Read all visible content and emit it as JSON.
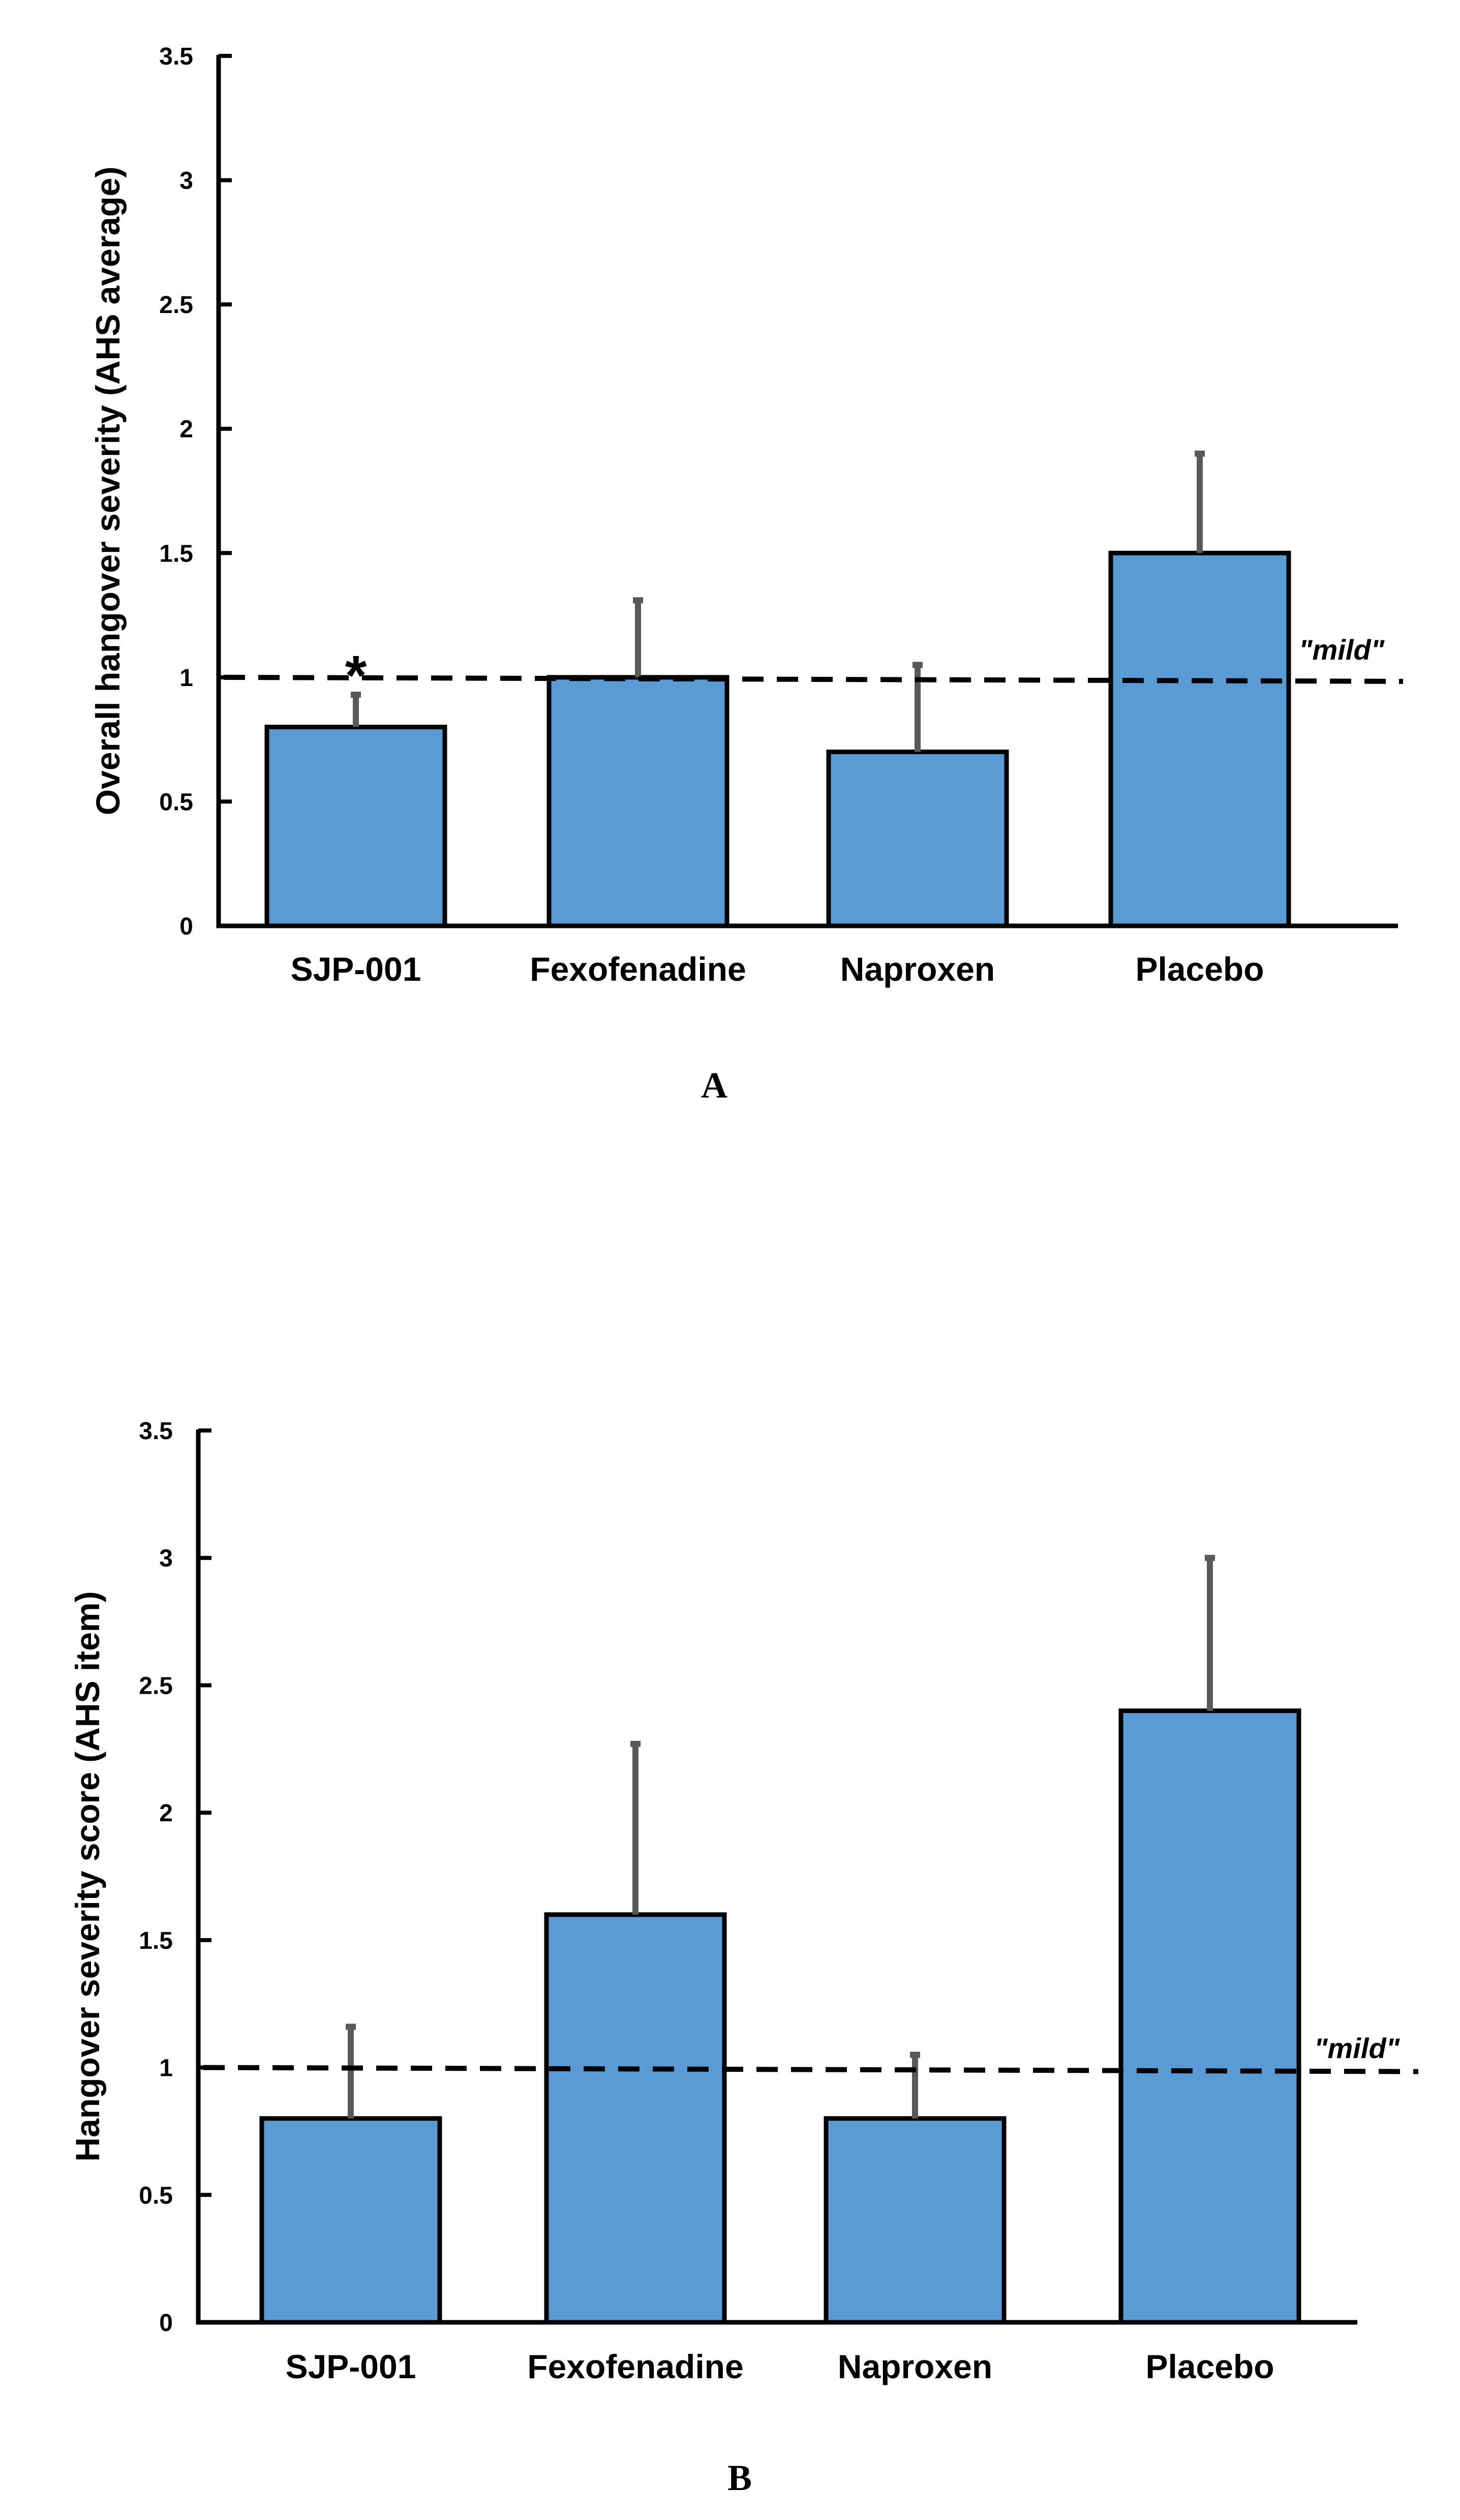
{
  "chart_data": [
    {
      "panel": "A",
      "type": "bar",
      "title": "",
      "xlabel": "",
      "ylabel": "Overall hangover severity (AHS average)",
      "ylim": [
        0,
        3.5
      ],
      "yticks": [
        "0",
        "0.5",
        "1",
        "1.5",
        "2",
        "2.5",
        "3",
        "3.5"
      ],
      "grid": false,
      "categories": [
        "SJP-001",
        "Fexofenadine",
        "Naproxen",
        "Placebo"
      ],
      "values": [
        0.8,
        1.0,
        0.7,
        1.5
      ],
      "error_upper": [
        0.13,
        0.31,
        0.35,
        0.4
      ],
      "bar_color": "#5b9bd5",
      "error_color": "#595959",
      "significance": [
        {
          "category": "SJP-001",
          "label": "*"
        }
      ],
      "reference_line": {
        "value": 1,
        "label": "\"mild\"",
        "style": "dashed"
      }
    },
    {
      "panel": "B",
      "type": "bar",
      "title": "",
      "xlabel": "",
      "ylabel": "Hangover severity score (AHS item)",
      "ylim": [
        0,
        3.5
      ],
      "yticks": [
        "0",
        "0.5",
        "1",
        "1.5",
        "2",
        "2.5",
        "3",
        "3.5"
      ],
      "grid": false,
      "categories": [
        "SJP-001",
        "Fexofenadine",
        "Naproxen",
        "Placebo"
      ],
      "values": [
        0.8,
        1.6,
        0.8,
        2.4
      ],
      "error_upper": [
        0.36,
        0.67,
        0.25,
        0.6
      ],
      "bar_color": "#5b9bd5",
      "error_color": "#595959",
      "significance": [],
      "reference_line": {
        "value": 1,
        "label": "\"mild\"",
        "style": "dashed"
      }
    }
  ]
}
